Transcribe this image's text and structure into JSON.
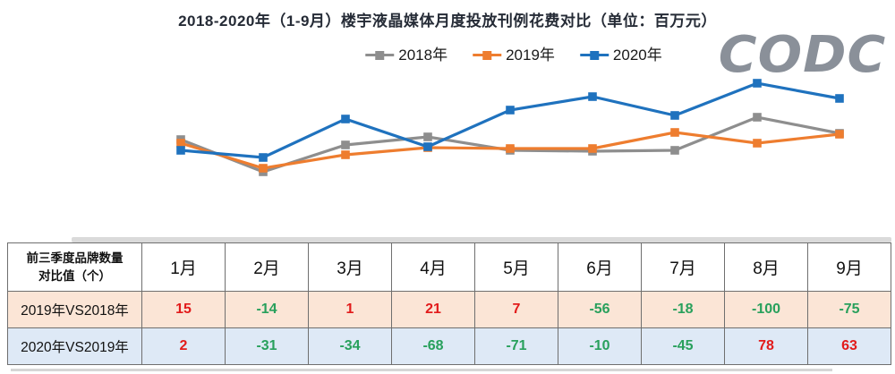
{
  "title": "2018-2020年（1-9月）楼宇液晶媒体月度投放刊例花费对比（单位：百万元）",
  "logo": "CODC",
  "chart_data": {
    "type": "line",
    "title": "2018-2020年（1-9月）楼宇液晶媒体月度投放刊例花费对比（单位：百万元）",
    "categories": [
      "1月",
      "2月",
      "3月",
      "4月",
      "5月",
      "6月",
      "7月",
      "8月",
      "9月"
    ],
    "series": [
      {
        "name": "2018年",
        "color": "#8E8E8E",
        "values": [
          54,
          18,
          48,
          57,
          42,
          41,
          42,
          79,
          61
        ]
      },
      {
        "name": "2019年",
        "color": "#EE7D2F",
        "values": [
          50,
          22,
          37,
          45,
          44,
          44,
          62,
          50,
          60
        ]
      },
      {
        "name": "2020年",
        "color": "#1F72BE",
        "values": [
          42,
          34,
          77,
          46,
          87,
          102,
          81,
          117,
          100
        ]
      }
    ],
    "xlabel": "",
    "ylabel": "",
    "ylim": [
      0,
      130
    ],
    "y_axis_visible": false,
    "x_axis_visible": false,
    "grid": false,
    "legend_position": "top",
    "marker": "square",
    "values_note": "no axis labels shown in source; values are relative estimates"
  },
  "table": {
    "corner_header_line1": "前三季度品牌数量",
    "corner_header_line2": "对比值（个）",
    "columns": [
      "1月",
      "2月",
      "3月",
      "4月",
      "5月",
      "6月",
      "7月",
      "8月",
      "9月"
    ],
    "rows": [
      {
        "label": "2019年VS2018年",
        "values": [
          15,
          -14,
          1,
          21,
          7,
          -56,
          -18,
          -100,
          -75
        ],
        "bg": "#FBE5D6"
      },
      {
        "label": "2020年VS2019年",
        "values": [
          2,
          -31,
          -34,
          -68,
          -71,
          -10,
          -45,
          78,
          63
        ],
        "bg": "#DEE9F6"
      }
    ],
    "positive_color": "#E21B1B",
    "negative_color": "#28A05C"
  }
}
